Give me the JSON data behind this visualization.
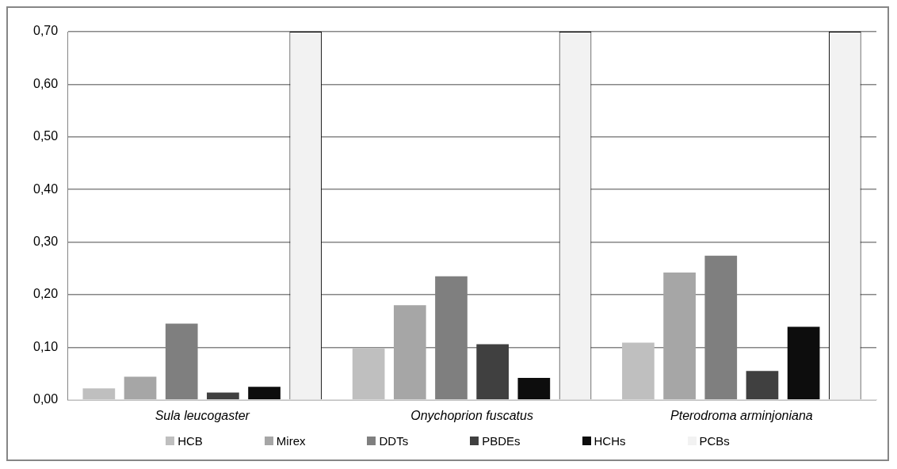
{
  "chart_data": {
    "type": "bar",
    "categories": [
      "Sula leucogaster",
      "Onychoprion fuscatus",
      "Pterodroma arminjoniana"
    ],
    "series": [
      {
        "name": "HCB",
        "color": "#bfbfbf",
        "values": [
          0.022,
          0.098,
          0.109
        ]
      },
      {
        "name": "Mirex",
        "color": "#a6a6a6",
        "values": [
          0.044,
          0.18,
          0.242
        ]
      },
      {
        "name": "DDTs",
        "color": "#7f7f7f",
        "values": [
          0.145,
          0.235,
          0.274
        ]
      },
      {
        "name": "PBDEs",
        "color": "#404040",
        "values": [
          0.014,
          0.106,
          0.055
        ]
      },
      {
        "name": "HCHs",
        "color": "#0d0d0d",
        "values": [
          0.025,
          0.042,
          0.139
        ]
      },
      {
        "name": "PCBs",
        "color": "#f2f2f2",
        "values": [
          0.7,
          0.7,
          0.7
        ]
      }
    ],
    "ylim": [
      0,
      0.7
    ],
    "yticks": [
      {
        "value": 0,
        "label": "0,00"
      },
      {
        "value": 0.1,
        "label": "0,10"
      },
      {
        "value": 0.2,
        "label": "0,20"
      },
      {
        "value": 0.3,
        "label": "0,30"
      },
      {
        "value": 0.4,
        "label": "0,40"
      },
      {
        "value": 0.5,
        "label": "0,50"
      },
      {
        "value": 0.6,
        "label": "0,60"
      },
      {
        "value": 0.7,
        "label": "0,70"
      }
    ],
    "grid": "y",
    "legend": "bottom"
  }
}
